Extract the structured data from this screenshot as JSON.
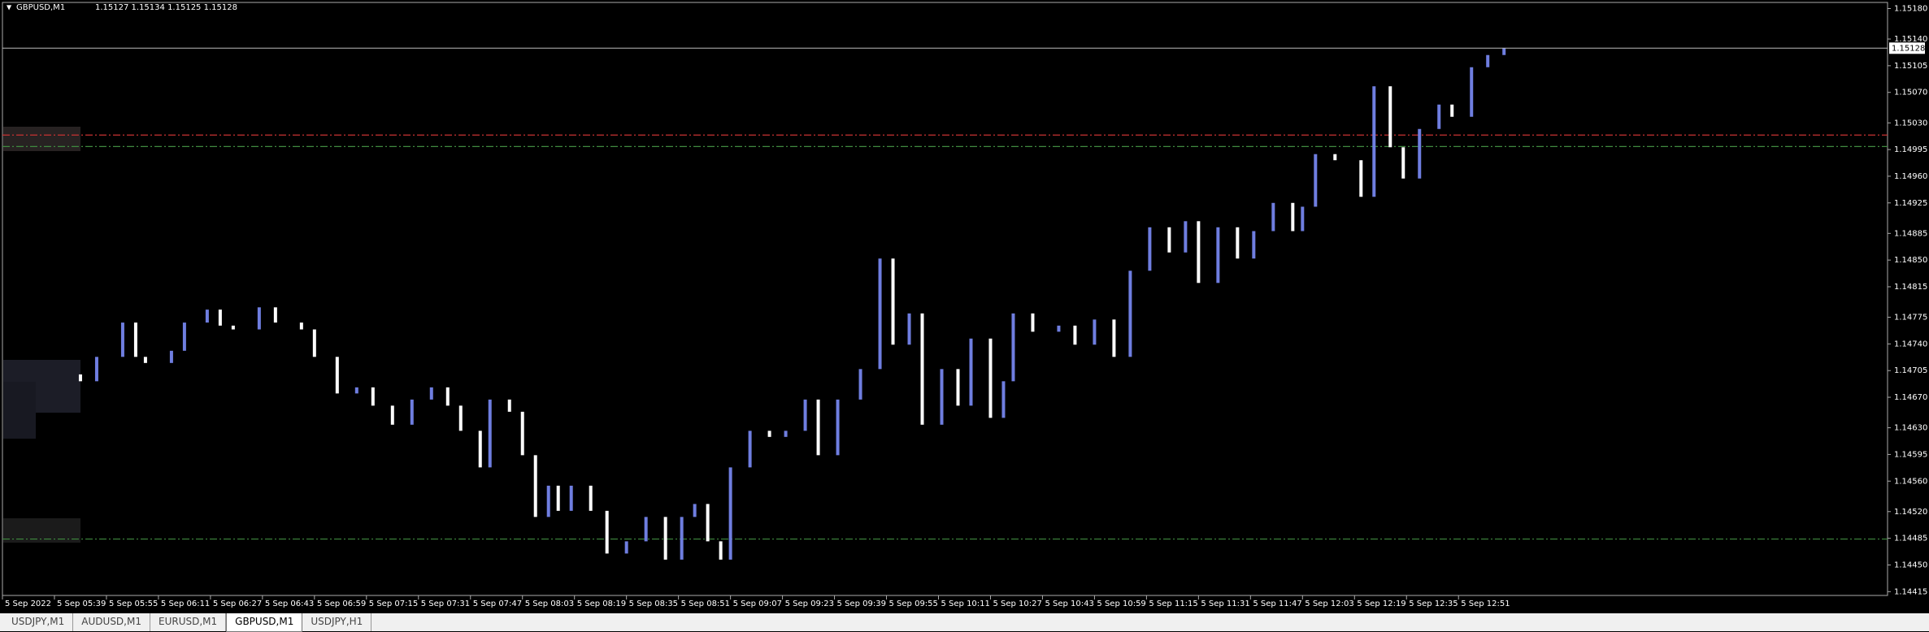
{
  "header": {
    "symbol": "GBPUSD,M1",
    "quote": "1.15127 1.15134 1.15125 1.15128"
  },
  "tabs": [
    "USDJPY,M1",
    "AUDUSD,M1",
    "EURUSD,M1",
    "GBPUSD,M1",
    "USDJPY,H1"
  ],
  "active_tab": 3,
  "chart_data": {
    "type": "candlestick",
    "up_color": "#6f7ee0",
    "down_color": "#ffffff",
    "x": [
      347,
      352,
      360,
      364,
      367,
      375,
      379,
      386,
      390,
      394,
      402,
      407,
      415,
      419,
      426,
      432,
      437,
      443,
      449,
      455,
      460,
      464,
      470,
      473,
      479,
      483,
      487,
      491,
      494,
      498,
      504,
      509,
      515,
      521,
      527,
      532,
      536,
      540,
      544,
      547,
      553,
      559,
      564,
      570,
      574,
      580,
      587,
      593,
      597,
      602,
      606,
      612,
      617,
      621,
      627,
      631,
      634,
      640,
      648,
      653,
      659,
      665,
      670,
      676,
      682,
      687,
      691,
      697,
      703,
      708,
      714,
      720,
      723,
      727,
      733,
      741,
      745,
      750,
      754,
      759,
      765,
      769,
      775,
      780,
      785
    ],
    "open": [
      1.147,
      1.14691,
      1.14723,
      1.14768,
      1.14723,
      1.14715,
      1.14731,
      1.14768,
      1.14785,
      1.14764,
      1.14759,
      1.14788,
      1.14768,
      1.14759,
      1.14723,
      1.14675,
      1.14683,
      1.14659,
      1.14634,
      1.14667,
      1.14683,
      1.14659,
      1.14626,
      1.14578,
      1.14667,
      1.14651,
      1.14594,
      1.14513,
      1.14554,
      1.14521,
      1.14554,
      1.14521,
      1.14465,
      1.14481,
      1.14513,
      1.14457,
      1.14513,
      1.1453,
      1.14481,
      1.14457,
      1.14578,
      1.14626,
      1.14618,
      1.14626,
      1.14667,
      1.14594,
      1.14667,
      1.14707,
      1.14852,
      1.14739,
      1.1478,
      1.14634,
      1.14707,
      1.14659,
      1.14747,
      1.14643,
      1.14691,
      1.1478,
      1.14756,
      1.14764,
      1.14739,
      1.14772,
      1.14723,
      1.14836,
      1.14893,
      1.1486,
      1.14901,
      1.1482,
      1.14893,
      1.14852,
      1.14888,
      1.14925,
      1.14888,
      1.1492,
      1.14989,
      1.14981,
      1.14933,
      1.15078,
      1.14998,
      1.14957,
      1.15022,
      1.15054,
      1.15038,
      1.15103,
      1.15119
    ],
    "close": [
      1.14691,
      1.14723,
      1.14768,
      1.14723,
      1.14715,
      1.14731,
      1.14768,
      1.14785,
      1.14764,
      1.14759,
      1.14788,
      1.14768,
      1.14759,
      1.14723,
      1.14675,
      1.14683,
      1.14659,
      1.14634,
      1.14667,
      1.14683,
      1.14659,
      1.14626,
      1.14578,
      1.14667,
      1.14651,
      1.14594,
      1.14513,
      1.14554,
      1.14521,
      1.14554,
      1.14521,
      1.14465,
      1.14481,
      1.14513,
      1.14457,
      1.14513,
      1.1453,
      1.14481,
      1.14457,
      1.14578,
      1.14626,
      1.14618,
      1.14626,
      1.14667,
      1.14594,
      1.14667,
      1.14707,
      1.14852,
      1.14739,
      1.1478,
      1.14634,
      1.14707,
      1.14659,
      1.14747,
      1.14643,
      1.14691,
      1.1478,
      1.14756,
      1.14764,
      1.14739,
      1.14772,
      1.14723,
      1.14836,
      1.14893,
      1.1486,
      1.14901,
      1.1482,
      1.14893,
      1.14852,
      1.14888,
      1.14925,
      1.14888,
      1.1492,
      1.14989,
      1.14981,
      1.14933,
      1.15078,
      1.14998,
      1.14957,
      1.15022,
      1.15054,
      1.15038,
      1.15103,
      1.15119,
      1.15128
    ],
    "xlim": [
      323,
      903
    ],
    "xticks": [
      {
        "value": 323,
        "label": "5 Sep 2022"
      },
      {
        "value": 339,
        "label": "5 Sep 05:39"
      },
      {
        "value": 355,
        "label": "5 Sep 05:55"
      },
      {
        "value": 371,
        "label": "5 Sep 06:11"
      },
      {
        "value": 387,
        "label": "5 Sep 06:27"
      },
      {
        "value": 403,
        "label": "5 Sep 06:43"
      },
      {
        "value": 419,
        "label": "5 Sep 06:59"
      },
      {
        "value": 435,
        "label": "5 Sep 07:15"
      },
      {
        "value": 451,
        "label": "5 Sep 07:31"
      },
      {
        "value": 467,
        "label": "5 Sep 07:47"
      },
      {
        "value": 483,
        "label": "5 Sep 08:03"
      },
      {
        "value": 499,
        "label": "5 Sep 08:19"
      },
      {
        "value": 515,
        "label": "5 Sep 08:35"
      },
      {
        "value": 531,
        "label": "5 Sep 08:51"
      },
      {
        "value": 547,
        "label": "5 Sep 09:07"
      },
      {
        "value": 563,
        "label": "5 Sep 09:23"
      },
      {
        "value": 579,
        "label": "5 Sep 09:39"
      },
      {
        "value": 595,
        "label": "5 Sep 09:55"
      },
      {
        "value": 611,
        "label": "5 Sep 10:11"
      },
      {
        "value": 627,
        "label": "5 Sep 10:27"
      },
      {
        "value": 643,
        "label": "5 Sep 10:43"
      },
      {
        "value": 659,
        "label": "5 Sep 10:59"
      },
      {
        "value": 675,
        "label": "5 Sep 11:15"
      },
      {
        "value": 691,
        "label": "5 Sep 11:31"
      },
      {
        "value": 707,
        "label": "5 Sep 11:47"
      },
      {
        "value": 723,
        "label": "5 Sep 12:03"
      },
      {
        "value": 739,
        "label": "5 Sep 12:19"
      },
      {
        "value": 755,
        "label": "5 Sep 12:35"
      },
      {
        "value": 771,
        "label": "5 Sep 12:51"
      }
    ],
    "ylim": [
      1.1441,
      1.15188
    ],
    "yticks": [
      {
        "value": 1.1518,
        "label": "1.15180"
      },
      {
        "value": 1.1514,
        "label": "1.15140"
      },
      {
        "value": 1.15105,
        "label": "1.15105"
      },
      {
        "value": 1.1507,
        "label": "1.15070"
      },
      {
        "value": 1.1503,
        "label": "1.15030"
      },
      {
        "value": 1.14995,
        "label": "1.14995"
      },
      {
        "value": 1.1496,
        "label": "1.14960"
      },
      {
        "value": 1.14925,
        "label": "1.14925"
      },
      {
        "value": 1.14885,
        "label": "1.14885"
      },
      {
        "value": 1.1485,
        "label": "1.14850"
      },
      {
        "value": 1.14815,
        "label": "1.14815"
      },
      {
        "value": 1.14775,
        "label": "1.14775"
      },
      {
        "value": 1.1474,
        "label": "1.14740"
      },
      {
        "value": 1.14705,
        "label": "1.14705"
      },
      {
        "value": 1.1467,
        "label": "1.14670"
      },
      {
        "value": 1.1463,
        "label": "1.14630"
      },
      {
        "value": 1.14595,
        "label": "1.14595"
      },
      {
        "value": 1.1456,
        "label": "1.14560"
      },
      {
        "value": 1.1452,
        "label": "1.14520"
      },
      {
        "value": 1.14485,
        "label": "1.14485"
      },
      {
        "value": 1.1445,
        "label": "1.14450"
      },
      {
        "value": 1.14415,
        "label": "1.14415"
      }
    ],
    "levels": [
      {
        "value": 1.15014,
        "color": "#c83232"
      },
      {
        "value": 1.14999,
        "color": "#3f8a3f"
      },
      {
        "value": 1.14484,
        "color": "#3f8a3f"
      }
    ],
    "bid": 1.15128
  }
}
